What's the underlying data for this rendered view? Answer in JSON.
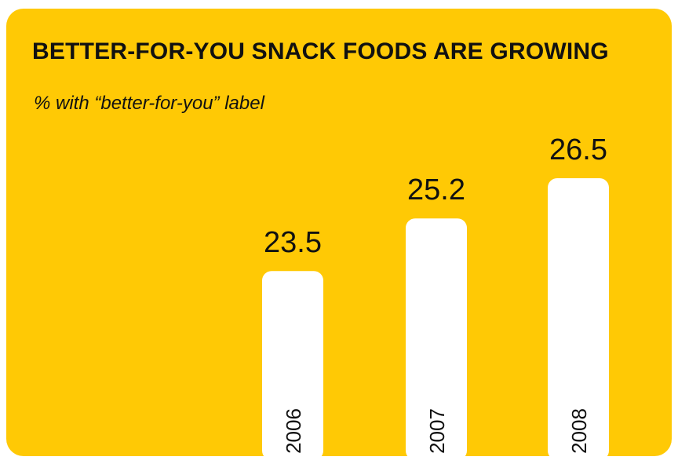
{
  "chart_data": {
    "type": "bar",
    "title": "BETTER-FOR-YOU SNACK FOODS ARE GROWING",
    "subtitle": "% with “better-for-you” label",
    "xlabel": "",
    "ylabel": "",
    "categories": [
      "2006",
      "2007",
      "2008"
    ],
    "values": [
      23.5,
      25.2,
      26.5
    ],
    "value_labels": [
      "23.5",
      "25.2",
      "26.5"
    ],
    "ylim": [
      0,
      26.5
    ],
    "grid": false,
    "legend": "none",
    "colors": {
      "background": "#FFC905",
      "bar": "#FFFFFF",
      "text": "#111111"
    }
  }
}
